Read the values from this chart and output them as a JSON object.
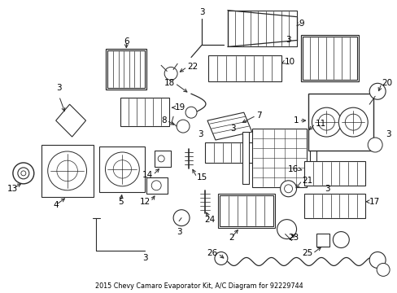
{
  "title": "2015 Chevy Camaro Evaporator Kit, A/C Diagram for 92229744",
  "background_color": "#ffffff",
  "line_color": "#2a2a2a",
  "text_color": "#000000",
  "fig_width": 4.89,
  "fig_height": 3.6,
  "dpi": 100
}
